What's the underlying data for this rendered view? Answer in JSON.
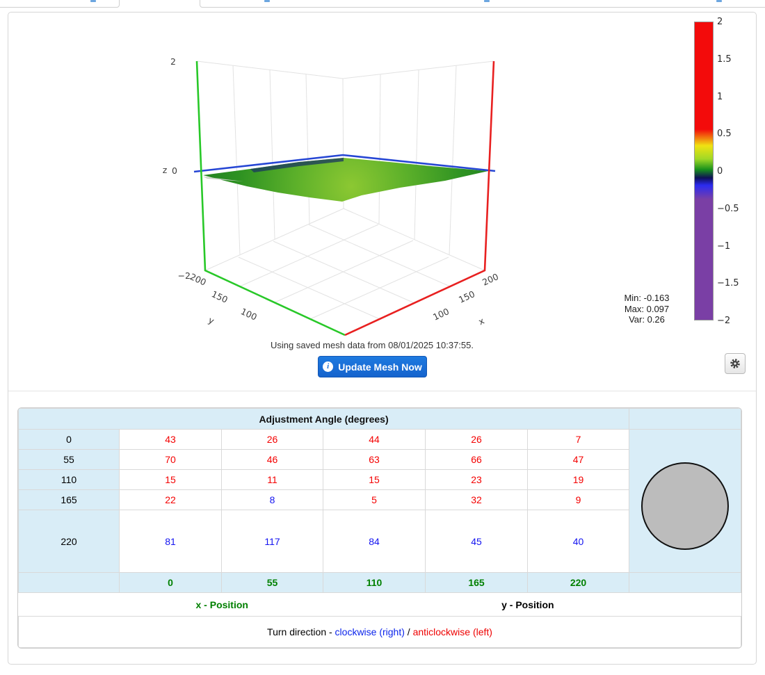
{
  "plot": {
    "z_ticks": [
      "2",
      "0",
      "−2"
    ],
    "y_ticks": [
      "200",
      "150",
      "100"
    ],
    "x_ticks": [
      "200",
      "150",
      "100"
    ],
    "x_label": "x",
    "y_label": "y",
    "z_label": "z",
    "colorbar": {
      "ticks": [
        "2",
        "1.5",
        "1",
        "0.5",
        "0",
        "−0.5",
        "−1",
        "−1.5",
        "−2"
      ]
    },
    "stats": {
      "min": "Min: -0.163",
      "max": "Max: 0.097",
      "var": "Var: 0.26"
    },
    "mesh_status": "Using saved mesh data from 08/01/2025 10:37:55.",
    "update_button": "Update Mesh Now",
    "info_icon_glyph": "i"
  },
  "chart_data": {
    "type": "surface",
    "x_ticks": [
      100,
      150,
      200
    ],
    "y_ticks": [
      100,
      150,
      200
    ],
    "z_ticks": [
      -2,
      0,
      2
    ],
    "zlim": [
      -2,
      2
    ],
    "colorbar_ticks": [
      2,
      1.5,
      1,
      0.5,
      0,
      -0.5,
      -1,
      -1.5,
      -2
    ],
    "stats": {
      "min": -0.163,
      "max": 0.097,
      "var": 0.26
    },
    "description": "Flat green mesh surface near z=0 with blue z=0 reference line, green y-axis edge, red x-axis edge"
  },
  "table": {
    "title": "Adjustment Angle (degrees)",
    "row_labels": [
      "0",
      "55",
      "110",
      "165",
      "220"
    ],
    "col_labels": [
      "0",
      "55",
      "110",
      "165",
      "220"
    ],
    "rows": [
      {
        "label": "0",
        "values": [
          43,
          26,
          44,
          26,
          7
        ],
        "colors": [
          "red",
          "red",
          "red",
          "red",
          "red"
        ]
      },
      {
        "label": "55",
        "values": [
          70,
          46,
          63,
          66,
          47
        ],
        "colors": [
          "red",
          "red",
          "red",
          "red",
          "red"
        ]
      },
      {
        "label": "110",
        "values": [
          15,
          11,
          15,
          23,
          19
        ],
        "colors": [
          "red",
          "red",
          "red",
          "red",
          "red"
        ]
      },
      {
        "label": "165",
        "values": [
          22,
          8,
          5,
          32,
          9
        ],
        "colors": [
          "red",
          "blue",
          "red",
          "red",
          "red"
        ]
      },
      {
        "label": "220",
        "values": [
          81,
          117,
          84,
          45,
          40
        ],
        "colors": [
          "blue",
          "blue",
          "blue",
          "blue",
          "blue"
        ]
      }
    ],
    "x_position_label": "x - Position",
    "y_position_label": "y - Position",
    "turn_direction": {
      "prefix": "Turn direction - ",
      "clockwise": "clockwise (right)",
      "separator": " / ",
      "anticlockwise": "anticlockwise (left)"
    }
  },
  "colors": {
    "accent_blue": "#1b6fd8",
    "red_value": "#f40000",
    "blue_value": "#1414f0",
    "green_label": "#008000",
    "light_blue_bg": "#d9edf7",
    "surface_green": "#4aa428",
    "axis_green": "#28c828",
    "axis_red": "#e82020",
    "zero_line_blue": "#2646d4",
    "colorbar_purple": "#7a3fa5"
  }
}
